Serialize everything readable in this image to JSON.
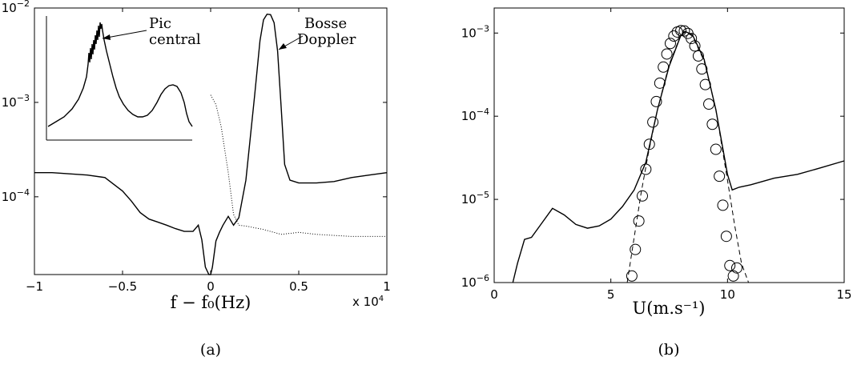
{
  "chart_data": [
    {
      "type": "line",
      "panel_label": "(a)",
      "xlabel": "f − f₀(Hz)",
      "x_multiplier": "x 10",
      "x_multiplier_exp": "4",
      "xlim": [
        -1,
        1
      ],
      "ylim": [
        1.5e-05,
        0.01
      ],
      "yscale": "log",
      "x_ticks": [
        -1,
        -0.5,
        0,
        0.5,
        1
      ],
      "x_tick_labels": [
        "−1",
        "−0.5",
        "0",
        "0.5",
        "1"
      ],
      "y_ticks": [
        0.0001,
        0.001,
        0.01
      ],
      "y_tick_labels": [
        {
          "base": "10",
          "exp": "−4"
        },
        {
          "base": "10",
          "exp": "−3"
        },
        {
          "base": "10",
          "exp": "−2"
        }
      ],
      "grid": false,
      "annotations": [
        {
          "lines": [
            "Bosse",
            "Doppler"
          ],
          "target_x": 0.34,
          "target_y": 0.0085
        },
        {
          "lines": [
            "Pic",
            "central"
          ],
          "location": "inset"
        }
      ],
      "series": [
        {
          "style": "solid",
          "x": [
            -1.0,
            -0.9,
            -0.8,
            -0.7,
            -0.6,
            -0.5,
            -0.45,
            -0.4,
            -0.35,
            -0.3,
            -0.25,
            -0.2,
            -0.15,
            -0.1,
            -0.07,
            -0.05,
            -0.03,
            -0.01,
            0.0,
            0.01,
            0.03,
            0.05,
            0.07,
            0.1,
            0.13,
            0.16,
            0.2,
            0.25,
            0.28,
            0.3,
            0.32,
            0.34,
            0.36,
            0.38,
            0.4,
            0.42,
            0.45,
            0.5,
            0.6,
            0.7,
            0.8,
            0.9,
            1.0
          ],
          "y": [
            0.00018,
            0.00018,
            0.000175,
            0.00017,
            0.00016,
            0.000115,
            9e-05,
            6.8e-05,
            5.8e-05,
            5.4e-05,
            5e-05,
            4.6e-05,
            4.3e-05,
            4.3e-05,
            5e-05,
            3.5e-05,
            1.8e-05,
            1.5e-05,
            1.5e-05,
            1.8e-05,
            3.4e-05,
            4.2e-05,
            5e-05,
            6.2e-05,
            5e-05,
            6e-05,
            0.00015,
            0.0012,
            0.0045,
            0.0075,
            0.0086,
            0.0085,
            0.007,
            0.0035,
            0.0009,
            0.00022,
            0.00015,
            0.00014,
            0.00014,
            0.000145,
            0.00016,
            0.00017,
            0.00018
          ]
        },
        {
          "style": "dotted",
          "x": [
            0.0,
            0.03,
            0.06,
            0.1,
            0.13,
            0.16,
            0.2,
            0.3,
            0.4,
            0.5,
            0.6,
            0.7,
            0.8,
            0.9,
            1.0
          ],
          "y": [
            0.0012,
            0.00095,
            0.00055,
            0.00018,
            6.5e-05,
            5e-05,
            4.9e-05,
            4.5e-05,
            4e-05,
            4.2e-05,
            4e-05,
            3.9e-05,
            3.8e-05,
            3.8e-05,
            3.8e-05
          ]
        }
      ]
    },
    {
      "type": "line",
      "panel_label": "(b)",
      "xlabel": "U(m.s⁻¹)",
      "xlim": [
        0,
        15
      ],
      "ylim": [
        1e-06,
        0.002
      ],
      "yscale": "log",
      "x_ticks": [
        0,
        5,
        10,
        15
      ],
      "x_tick_labels": [
        "0",
        "5",
        "10",
        "15"
      ],
      "y_ticks": [
        1e-06,
        1e-05,
        0.0001,
        0.001
      ],
      "y_tick_labels": [
        {
          "base": "10",
          "exp": "−6"
        },
        {
          "base": "10",
          "exp": "−5"
        },
        {
          "base": "10",
          "exp": "−4"
        },
        {
          "base": "10",
          "exp": "−3"
        }
      ],
      "grid": false,
      "series": [
        {
          "style": "solid",
          "x": [
            0.8,
            1.0,
            1.3,
            1.6,
            2.0,
            2.5,
            3.0,
            3.5,
            4.0,
            4.5,
            5.0,
            5.5,
            6.0,
            6.5,
            7.0,
            7.5,
            8.0,
            8.2,
            8.5,
            9.0,
            9.5,
            10.0,
            10.2,
            10.5,
            11.0,
            12.0,
            13.0,
            14.0,
            15.0
          ],
          "y": [
            1e-06,
            1.7e-06,
            3.3e-06,
            3.5e-06,
            5e-06,
            7.8e-06,
            6.5e-06,
            5e-06,
            4.5e-06,
            4.8e-06,
            5.8e-06,
            8.2e-06,
            1.3e-05,
            2.8e-05,
            0.00012,
            0.0004,
            0.00094,
            0.00104,
            0.00095,
            0.00048,
            0.00012,
            2e-05,
            1.3e-05,
            1.4e-05,
            1.5e-05,
            1.8e-05,
            2e-05,
            2.4e-05,
            2.9e-05
          ]
        },
        {
          "style": "dashed",
          "x": [
            5.7,
            6.0,
            6.3,
            6.6,
            7.0,
            7.5,
            8.0,
            8.15,
            8.5,
            9.0,
            9.5,
            10.0,
            10.3,
            10.6,
            10.9
          ],
          "y": [
            1e-06,
            3.5e-06,
            1.2e-05,
            3.5e-05,
            0.00012,
            0.00042,
            0.00095,
            0.00105,
            0.00092,
            0.00046,
            0.00012,
            1.7e-05,
            5e-06,
            1.7e-06,
            1e-06
          ]
        },
        {
          "style": "circles",
          "x": [
            5.9,
            6.05,
            6.2,
            6.35,
            6.5,
            6.65,
            6.8,
            6.95,
            7.1,
            7.25,
            7.4,
            7.55,
            7.7,
            7.85,
            8.0,
            8.15,
            8.3,
            8.45,
            8.6,
            8.75,
            8.9,
            9.05,
            9.2,
            9.35,
            9.5,
            9.65,
            9.8,
            9.95,
            10.1,
            10.25,
            10.4
          ],
          "y": [
            1.2e-06,
            2.5e-06,
            5.5e-06,
            1.1e-05,
            2.3e-05,
            4.6e-05,
            8.5e-05,
            0.00015,
            0.00025,
            0.00039,
            0.00056,
            0.00075,
            0.00092,
            0.00103,
            0.00107,
            0.00106,
            0.00099,
            0.00086,
            0.0007,
            0.00053,
            0.00037,
            0.00024,
            0.00014,
            8e-05,
            4e-05,
            1.9e-05,
            8.5e-06,
            3.6e-06,
            1.6e-06,
            1.2e-06,
            1.5e-06
          ]
        }
      ]
    }
  ]
}
